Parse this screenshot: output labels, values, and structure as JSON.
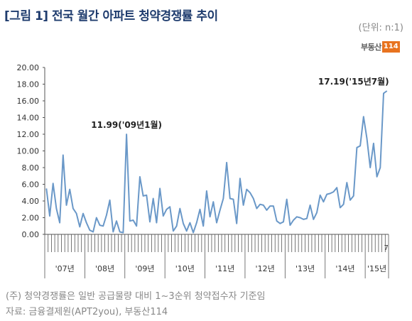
{
  "title": "[그림 1] 전국 월간 아파트 청약경쟁률 추이",
  "unit": "(단위: n:1)",
  "logo": {
    "text": "부동산",
    "badge": "114"
  },
  "notes": {
    "note1": "(주) 청약경쟁률은 일반 공급물량 대비 1~3순위 청약접수자 기준임",
    "note2": "자료: 금융결제원(APT2you), 부동산114"
  },
  "colors": {
    "line": "#6a98c8",
    "title": "#1f3c6e",
    "logo": "#e8731f"
  },
  "chart_data": {
    "type": "line",
    "y_ticks": [
      "0.00",
      "2.00",
      "4.00",
      "6.00",
      "8.00",
      "10.00",
      "12.00",
      "14.00",
      "16.00",
      "18.00",
      "20.00"
    ],
    "ylim": [
      0,
      20
    ],
    "year_labels": [
      "'07년",
      "'08년",
      "'09년",
      "'10년",
      "'11년",
      "'12년",
      "'13년",
      "'14년",
      "'15년"
    ],
    "last_month_label": "7",
    "grid": false,
    "annotations": [
      {
        "text": "11.99('09년1월)",
        "index": 24
      },
      {
        "text": "17.19('15년7월)",
        "index": 102
      }
    ],
    "series": [
      {
        "values": [
          5.5,
          2.2,
          6.1,
          3.1,
          1.4,
          9.5,
          3.5,
          5.4,
          3.1,
          2.5,
          0.9,
          2.5,
          1.4,
          0.5,
          0.3,
          2.0,
          1.1,
          1.0,
          2.3,
          4.1,
          0.3,
          1.6,
          0.3,
          0.2,
          11.99,
          1.6,
          1.7,
          1.0,
          6.9,
          4.6,
          4.7,
          1.5,
          4.3,
          1.4,
          5.5,
          2.2,
          3.0,
          3.3,
          0.4,
          1.0,
          3.1,
          1.3,
          0.4,
          1.4,
          0.2,
          1.4,
          3.0,
          1.0,
          5.2,
          2.1,
          3.9,
          1.4,
          2.9,
          4.3,
          8.6,
          4.3,
          4.2,
          1.3,
          6.7,
          3.5,
          5.4,
          5.0,
          4.3,
          3.1,
          3.6,
          3.5,
          2.9,
          3.4,
          3.4,
          1.6,
          1.3,
          1.5,
          4.2,
          1.1,
          1.7,
          2.1,
          2.0,
          1.8,
          1.9,
          3.5,
          1.8,
          2.6,
          4.7,
          3.9,
          4.8,
          4.9,
          5.1,
          5.6,
          3.2,
          3.6,
          6.2,
          4.1,
          4.6,
          10.4,
          10.6,
          14.1,
          11.5,
          8.0,
          10.9,
          6.9,
          8.0,
          16.9,
          17.19
        ]
      }
    ]
  }
}
